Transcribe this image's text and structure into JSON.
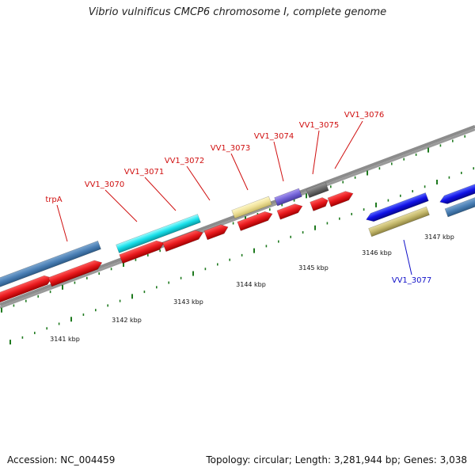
{
  "title": "Vibrio vulnificus CMCP6 chromosome I, complete genome",
  "footer": {
    "accession_label": "Accession:",
    "accession": "NC_004459",
    "topology_label": "Topology:",
    "topology": "circular",
    "length_label": "Length:",
    "length": "3,281,944 bp",
    "genes_label": "Genes:",
    "genes": "3,038"
  },
  "colors": {
    "backbone": "#8c8c8c",
    "tick": "#1f7a1f",
    "forward_cds": "#e8191d",
    "label_red": "#d01010",
    "label_blue": "#1010c8"
  },
  "axis_ticks": [
    {
      "kbp": 3141,
      "label": "3141 kbp"
    },
    {
      "kbp": 3142,
      "label": "3142 kbp"
    },
    {
      "kbp": 3143,
      "label": "3143 kbp"
    },
    {
      "kbp": 3144,
      "label": "3144 kbp"
    },
    {
      "kbp": 3145,
      "label": "3145 kbp"
    },
    {
      "kbp": 3146,
      "label": "3146 kbp"
    },
    {
      "kbp": 3147,
      "label": "3147 kbp"
    }
  ],
  "gene_labels": [
    {
      "name": "trpA",
      "strand": "forward"
    },
    {
      "name": "VV1_3070",
      "strand": "forward"
    },
    {
      "name": "VV1_3071",
      "strand": "forward"
    },
    {
      "name": "VV1_3072",
      "strand": "forward"
    },
    {
      "name": "VV1_3073",
      "strand": "forward"
    },
    {
      "name": "VV1_3074",
      "strand": "forward"
    },
    {
      "name": "VV1_3075",
      "strand": "forward"
    },
    {
      "name": "VV1_3076",
      "strand": "forward"
    },
    {
      "name": "VV1_3077",
      "strand": "reverse"
    }
  ]
}
